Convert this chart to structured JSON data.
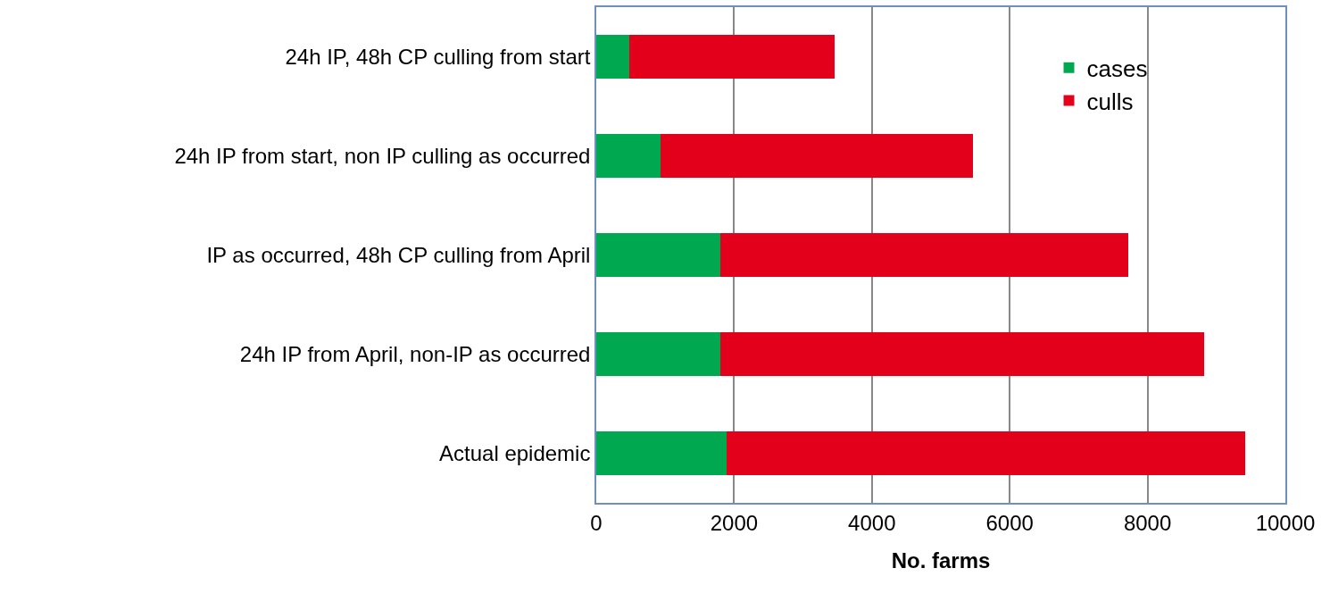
{
  "chart_data": {
    "type": "bar",
    "orientation": "horizontal",
    "stacked": true,
    "xlabel": "No. farms",
    "categories": [
      "24h IP, 48h CP culling from start",
      "24h IP from start, non IP culling as occurred",
      "IP as occurred, 48h CP culling from April",
      "24h IP from April, non-IP as occurred",
      "Actual epidemic"
    ],
    "series": [
      {
        "name": "cases",
        "color": "#00a84f",
        "values": [
          480,
          930,
          1800,
          1800,
          1890
        ]
      },
      {
        "name": "culls",
        "color": "#e2001a",
        "values": [
          2980,
          4540,
          5920,
          7020,
          7530
        ]
      }
    ],
    "xlim": [
      0,
      10000
    ],
    "xticks": [
      0,
      2000,
      4000,
      6000,
      8000,
      10000
    ],
    "grid": "x",
    "legend": "top right"
  }
}
